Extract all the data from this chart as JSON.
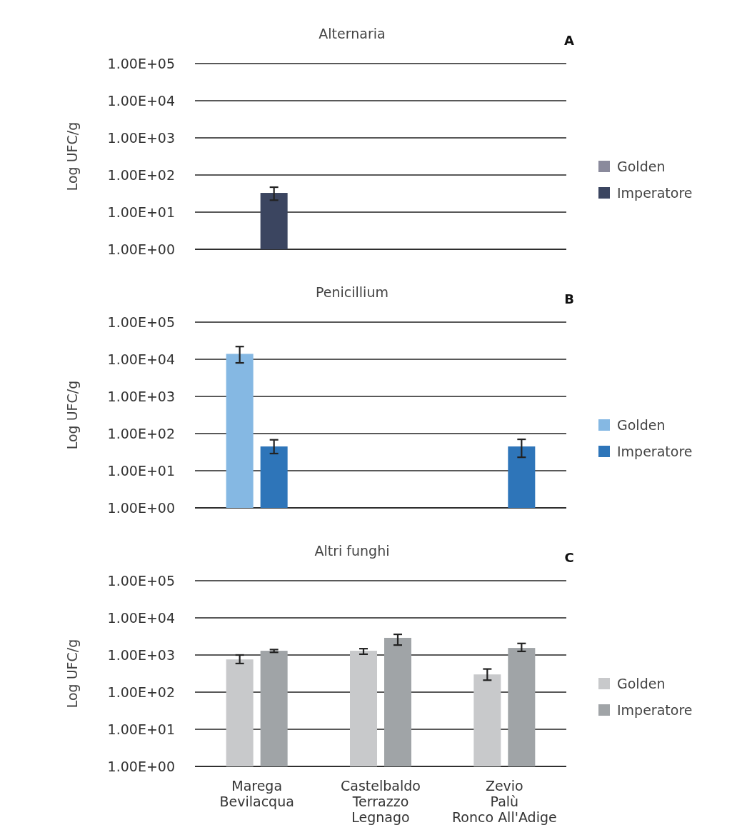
{
  "chart_data": [
    {
      "type": "bar",
      "title": "Alternaria",
      "ylabel": "Log UFC/g",
      "annotations": [
        "A"
      ],
      "categories": [
        null,
        null,
        null
      ],
      "log": true,
      "ylim": [
        1,
        100000
      ],
      "yticks": [
        {
          "value": 1,
          "label": "1.00E+00"
        },
        {
          "value": 10,
          "label": "1.00E+01"
        },
        {
          "value": 100,
          "label": "1.00E+02"
        },
        {
          "value": 1000,
          "label": "1.00E+03"
        },
        {
          "value": 10000,
          "label": "1.00E+04"
        },
        {
          "value": 100000,
          "label": "1.00E+05"
        }
      ],
      "grid": "y",
      "legend": "right",
      "tick_labels": "y",
      "series": [
        {
          "name": "Golden",
          "color": "#8a8a9c",
          "values": [
            null,
            null,
            null
          ]
        },
        {
          "name": "Imperatore",
          "color": "#3b4560",
          "values": [
            33,
            null,
            null
          ],
          "errors": [
            [
              21,
              47
            ],
            null,
            null
          ]
        }
      ]
    },
    {
      "type": "bar",
      "title": "Penicillium",
      "ylabel": "Log UFC/g",
      "annotations": [
        "B"
      ],
      "categories": [
        null,
        null,
        null
      ],
      "log": true,
      "ylim": [
        1,
        100000
      ],
      "yticks": [
        {
          "value": 1,
          "label": "1.00E+00"
        },
        {
          "value": 10,
          "label": "1.00E+01"
        },
        {
          "value": 100,
          "label": "1.00E+02"
        },
        {
          "value": 1000,
          "label": "1.00E+03"
        },
        {
          "value": 10000,
          "label": "1.00E+04"
        },
        {
          "value": 100000,
          "label": "1.00E+05"
        }
      ],
      "grid": "y",
      "legend": "right",
      "tick_labels": "y",
      "series": [
        {
          "name": "Golden",
          "color": "#85b8e3",
          "values": [
            14000,
            null,
            null
          ],
          "errors": [
            [
              8000,
              22000
            ],
            null,
            null
          ]
        },
        {
          "name": "Imperatore",
          "color": "#2e75b9",
          "values": [
            45,
            null,
            45
          ],
          "errors": [
            [
              29,
              68
            ],
            null,
            [
              23,
              70
            ]
          ]
        }
      ]
    },
    {
      "type": "bar",
      "title": "Altri funghi",
      "ylabel": "Log UFC/g",
      "annotations": [
        "C"
      ],
      "categories": [
        "Marega\nBevilacqua",
        "Castelbaldo\nTerrazzo\nLegnago",
        "Zevio\nPalù\nRonco All'Adige"
      ],
      "log": true,
      "ylim": [
        1,
        100000
      ],
      "yticks": [
        {
          "value": 1,
          "label": "1.00E+00"
        },
        {
          "value": 10,
          "label": "1.00E+01"
        },
        {
          "value": 100,
          "label": "1.00E+02"
        },
        {
          "value": 1000,
          "label": "1.00E+03"
        },
        {
          "value": 10000,
          "label": "1.00E+04"
        },
        {
          "value": 100000,
          "label": "1.00E+05"
        }
      ],
      "grid": "y",
      "legend": "right",
      "series": [
        {
          "name": "Golden",
          "color": "#c8c9cb",
          "values": [
            760,
            1300,
            300
          ],
          "errors": [
            [
              590,
              1000
            ],
            [
              1050,
              1480
            ],
            [
              210,
              420
            ]
          ]
        },
        {
          "name": "Imperatore",
          "color": "#a0a4a7",
          "values": [
            1300,
            2900,
            1550
          ],
          "errors": [
            [
              1180,
              1400
            ],
            [
              1850,
              3600
            ],
            [
              1250,
              2050
            ]
          ]
        }
      ]
    }
  ]
}
